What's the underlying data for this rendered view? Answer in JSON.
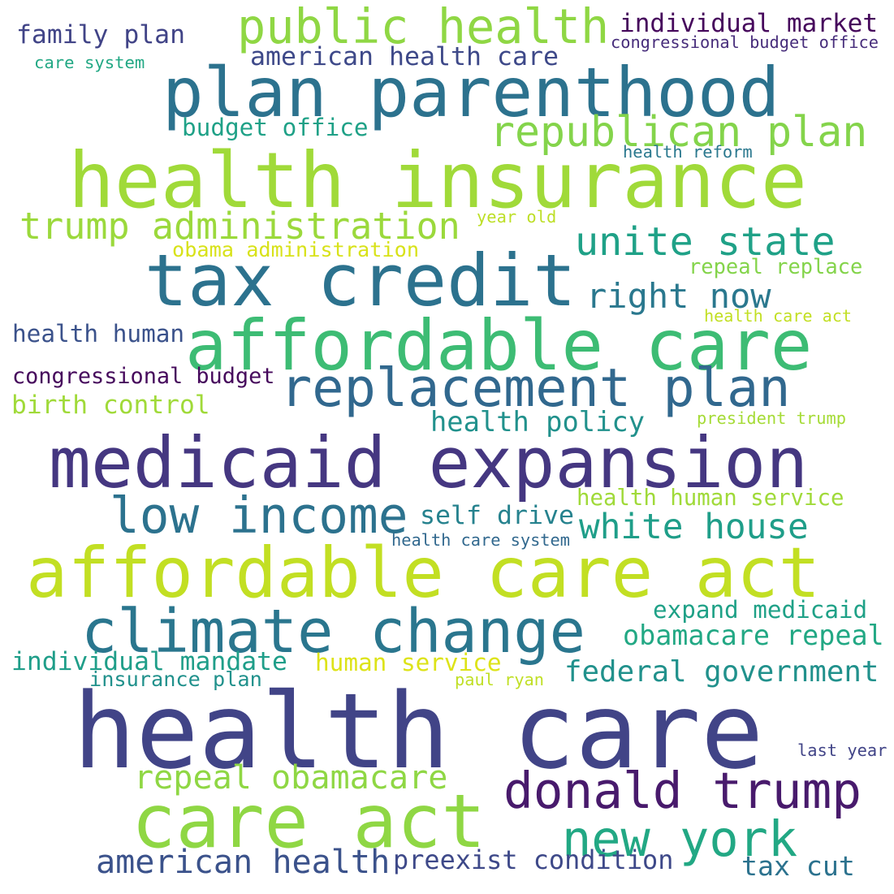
{
  "words": [
    {
      "text": "health care",
      "color": "#414487"
    },
    {
      "text": "health insurance",
      "color": "#a0da39"
    },
    {
      "text": "affordable care act",
      "color": "#c2df23"
    },
    {
      "text": "medicaid expansion",
      "color": "#453781"
    },
    {
      "text": "affordable care",
      "color": "#3dbc74"
    },
    {
      "text": "plan parenthood",
      "color": "#2c728e"
    },
    {
      "text": "tax credit",
      "color": "#2c728e"
    },
    {
      "text": "care act",
      "color": "#8fd744"
    },
    {
      "text": "climate change",
      "color": "#2a768e"
    },
    {
      "text": "replacement plan",
      "color": "#31688e"
    },
    {
      "text": "public health",
      "color": "#8fd744"
    },
    {
      "text": "donald trump",
      "color": "#481a6c"
    },
    {
      "text": "low income",
      "color": "#2c728e"
    },
    {
      "text": "new york",
      "color": "#22a884"
    },
    {
      "text": "republican plan",
      "color": "#84d44b"
    },
    {
      "text": "trump administration",
      "color": "#9bd93c"
    },
    {
      "text": "unite state",
      "color": "#1fa187"
    },
    {
      "text": "american health",
      "color": "#3b528b"
    },
    {
      "text": "white house",
      "color": "#1f9e89"
    },
    {
      "text": "right now",
      "color": "#2a788e"
    },
    {
      "text": "repeal obamacare",
      "color": "#8fd744"
    },
    {
      "text": "preexist condition",
      "color": "#3e4989"
    },
    {
      "text": "individual market",
      "color": "#46085c"
    },
    {
      "text": "federal government",
      "color": "#21918c"
    },
    {
      "text": "obamacare repeal",
      "color": "#22a884"
    },
    {
      "text": "health policy",
      "color": "#21918c"
    },
    {
      "text": "american health care",
      "color": "#3e4989"
    },
    {
      "text": "individual mandate",
      "color": "#1f9e89"
    },
    {
      "text": "family plan",
      "color": "#414487"
    },
    {
      "text": "birth control",
      "color": "#a0da39"
    },
    {
      "text": "tax cut",
      "color": "#2c728e"
    },
    {
      "text": "expand medicaid",
      "color": "#1fa187"
    },
    {
      "text": "health human",
      "color": "#3b528b"
    },
    {
      "text": "budget office",
      "color": "#1fa187"
    },
    {
      "text": "human service",
      "color": "#dde318"
    },
    {
      "text": "self drive",
      "color": "#26828e"
    },
    {
      "text": "health human service",
      "color": "#a0da39"
    },
    {
      "text": "congressional budget",
      "color": "#46085c"
    },
    {
      "text": "repeal replace",
      "color": "#84d44b"
    },
    {
      "text": "obama administration",
      "color": "#d8e219"
    },
    {
      "text": "insurance plan",
      "color": "#21918c"
    },
    {
      "text": "congressional budget office",
      "color": "#472d7b"
    },
    {
      "text": "health care system",
      "color": "#31688e"
    },
    {
      "text": "care system",
      "color": "#22a884"
    },
    {
      "text": "health reform",
      "color": "#2a788e"
    },
    {
      "text": "year old",
      "color": "#bddf26"
    },
    {
      "text": "health care act",
      "color": "#c2df23"
    },
    {
      "text": "president trump",
      "color": "#a5db36"
    },
    {
      "text": "paul ryan",
      "color": "#c0df25"
    },
    {
      "text": "last year",
      "color": "#414487"
    }
  ]
}
